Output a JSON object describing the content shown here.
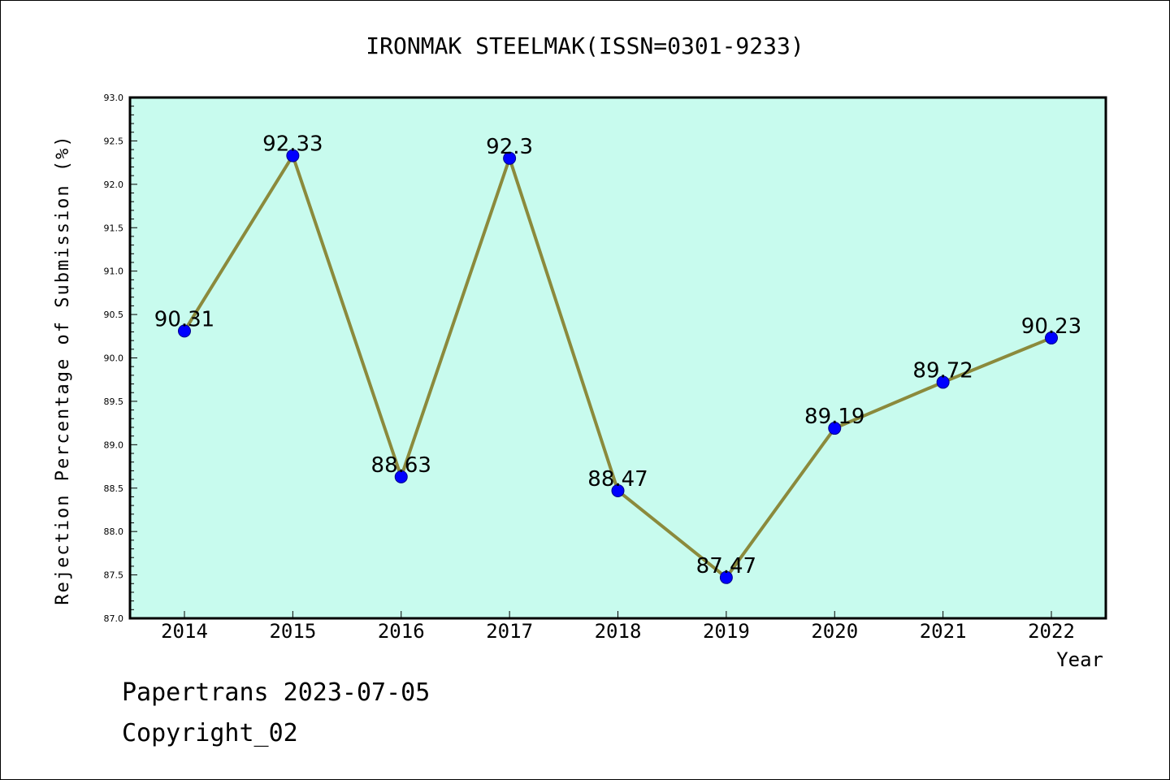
{
  "chart_data": {
    "type": "line",
    "title": "IRONMAK STEELMAK(ISSN=0301-9233)",
    "xlabel": "Year",
    "ylabel": "Rejection Percentage of Submission (%)",
    "categories": [
      "2014",
      "2015",
      "2016",
      "2017",
      "2018",
      "2019",
      "2020",
      "2021",
      "2022"
    ],
    "values": [
      90.31,
      92.33,
      88.63,
      92.3,
      88.47,
      87.47,
      89.19,
      89.72,
      90.23
    ],
    "data_labels": [
      "90.31",
      "92.33",
      "88.63",
      "92.3",
      "88.47",
      "87.47",
      "89.19",
      "89.72",
      "90.23"
    ],
    "ylim": [
      87.0,
      93.0
    ],
    "yticks": [
      "87.0",
      "87.5",
      "88.0",
      "88.5",
      "89.0",
      "89.5",
      "90.0",
      "90.5",
      "91.0",
      "91.5",
      "92.0",
      "92.5",
      "93.0"
    ],
    "grid": false,
    "colors": {
      "plot_background": "#c8fbee",
      "line": "#8b8a3c",
      "marker": "#0000ff"
    }
  },
  "footer": {
    "line1": "Papertrans 2023-07-05",
    "line2": "Copyright_02"
  }
}
